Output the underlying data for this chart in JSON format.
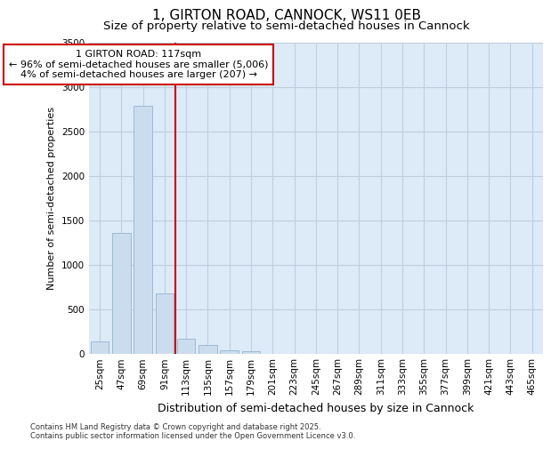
{
  "title_line1": "1, GIRTON ROAD, CANNOCK, WS11 0EB",
  "title_line2": "Size of property relative to semi-detached houses in Cannock",
  "xlabel": "Distribution of semi-detached houses by size in Cannock",
  "ylabel": "Number of semi-detached properties",
  "categories": [
    "25sqm",
    "47sqm",
    "69sqm",
    "91sqm",
    "113sqm",
    "135sqm",
    "157sqm",
    "179sqm",
    "201sqm",
    "223sqm",
    "245sqm",
    "267sqm",
    "289sqm",
    "311sqm",
    "333sqm",
    "355sqm",
    "377sqm",
    "399sqm",
    "421sqm",
    "443sqm",
    "465sqm"
  ],
  "values": [
    140,
    1360,
    2790,
    680,
    165,
    95,
    40,
    25,
    0,
    0,
    0,
    0,
    0,
    0,
    0,
    0,
    0,
    0,
    0,
    0,
    0
  ],
  "bar_color": "#ccdcef",
  "bar_edge_color": "#9bbbd4",
  "vline_x": 3.5,
  "vline_color": "#cc0000",
  "annotation_line1": "1 GIRTON ROAD: 117sqm",
  "annotation_line2": "← 96% of semi-detached houses are smaller (5,006)",
  "annotation_line3": "4% of semi-detached houses are larger (207) →",
  "annotation_box_color": "#cc0000",
  "ylim": [
    0,
    3500
  ],
  "yticks": [
    0,
    500,
    1000,
    1500,
    2000,
    2500,
    3000,
    3500
  ],
  "grid_color": "#c0cedd",
  "bg_color": "#ddeaf7",
  "footer_line1": "Contains HM Land Registry data © Crown copyright and database right 2025.",
  "footer_line2": "Contains public sector information licensed under the Open Government Licence v3.0.",
  "title_fontsize": 11,
  "subtitle_fontsize": 9.5,
  "annotation_fontsize": 8,
  "ylabel_fontsize": 8,
  "xlabel_fontsize": 9,
  "tick_fontsize": 7.5,
  "footer_fontsize": 6
}
